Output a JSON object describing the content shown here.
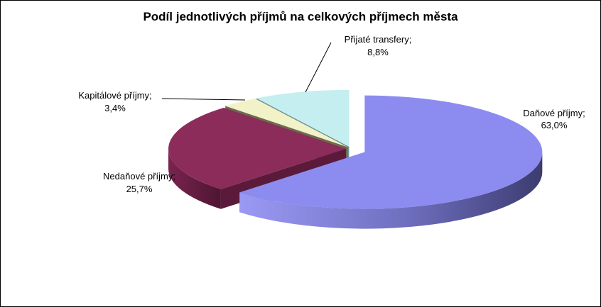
{
  "chart_data": {
    "type": "pie",
    "title": "Podíl jednotlivých příjmů na celkových příjmech města",
    "slices": [
      {
        "label": "Daňové  příjmy;",
        "value": 63.0,
        "value_label": "63,0%",
        "color": "#8c8cf0",
        "side": "#5a5a9c"
      },
      {
        "label": "Nedaňové  příjmy;",
        "value": 25.7,
        "value_label": "25,7%",
        "color": "#8b2c5a",
        "side": "#5c1a3a"
      },
      {
        "label": "Kapitálové  příjmy;",
        "value": 3.4,
        "value_label": "3,4%",
        "color": "#f2f2c8",
        "side": "#6e6a4e"
      },
      {
        "label": "Přijaté  transfery;",
        "value": 8.8,
        "value_label": "8,8%",
        "color": "#c4eef0",
        "side": "#6a8e92"
      }
    ],
    "legend": "none"
  }
}
